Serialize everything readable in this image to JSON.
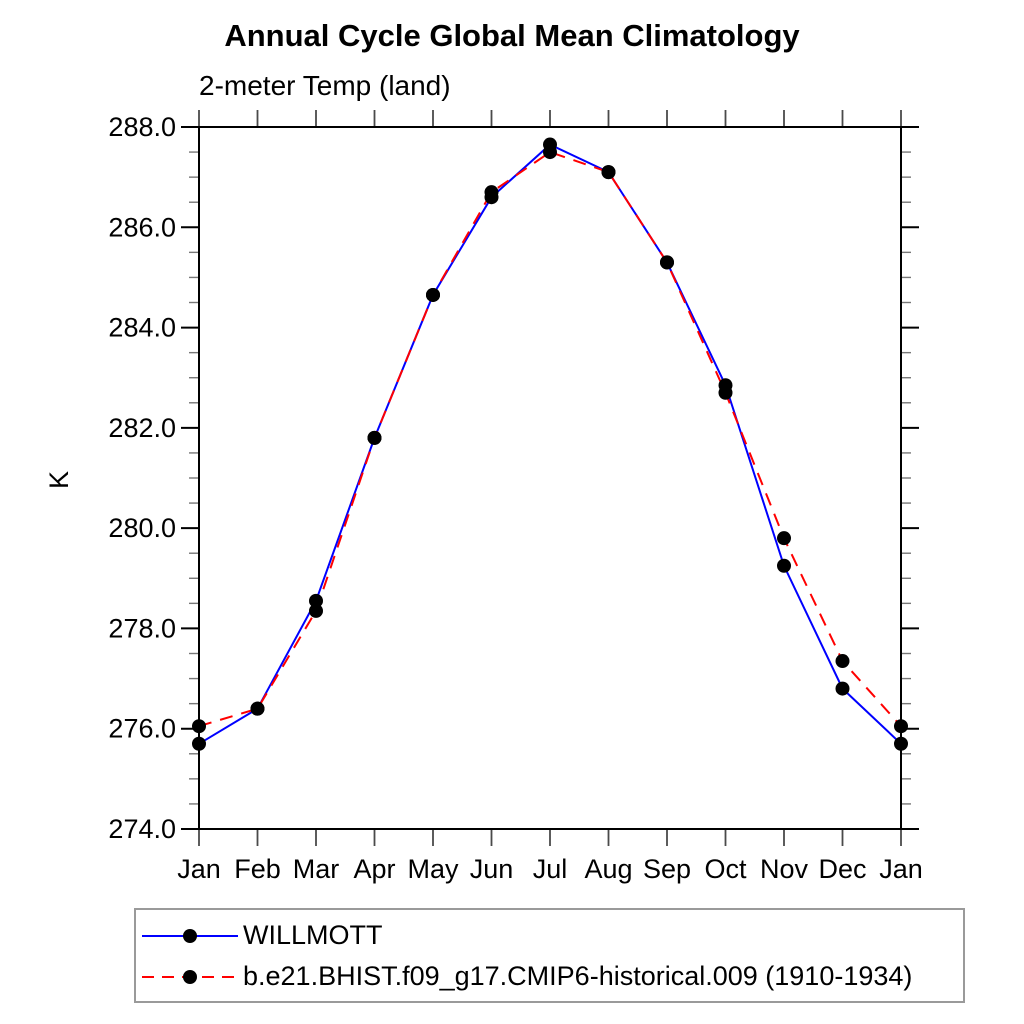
{
  "chart_data": {
    "type": "line",
    "title": "Annual Cycle Global Mean Climatology",
    "subtitle": "2-meter Temp (land)",
    "ylabel": "K",
    "xlabel": "",
    "x_categories": [
      "Jan",
      "Feb",
      "Mar",
      "Apr",
      "May",
      "Jun",
      "Jul",
      "Aug",
      "Sep",
      "Oct",
      "Nov",
      "Dec",
      "Jan"
    ],
    "ylim": [
      274.0,
      288.0
    ],
    "y_major_step": 2.0,
    "y_minor_step": 0.5,
    "y_tick_labels": [
      "288.0",
      "286.0",
      "284.0",
      "282.0",
      "280.0",
      "278.0",
      "276.0",
      "274.0"
    ],
    "grid": false,
    "legend_position": "bottom-left",
    "axis_color": "#000000",
    "minor_tick_color": "#777777",
    "marker_shape": "filled-circle",
    "series": [
      {
        "name": "WILLMOTT",
        "color": "#0000ff",
        "style": "solid",
        "marker_color": "#000000",
        "values": [
          275.7,
          276.4,
          278.55,
          281.8,
          284.65,
          286.6,
          287.65,
          287.1,
          285.3,
          282.85,
          279.25,
          276.8,
          275.7
        ]
      },
      {
        "name": "b.e21.BHIST.f09_g17.CMIP6-historical.009 (1910-1934)",
        "color": "#ff0000",
        "style": "dashed",
        "marker_color": "#000000",
        "values": [
          276.05,
          276.4,
          278.35,
          281.8,
          284.65,
          286.7,
          287.5,
          287.1,
          285.3,
          282.7,
          279.8,
          277.35,
          276.05
        ]
      }
    ]
  }
}
